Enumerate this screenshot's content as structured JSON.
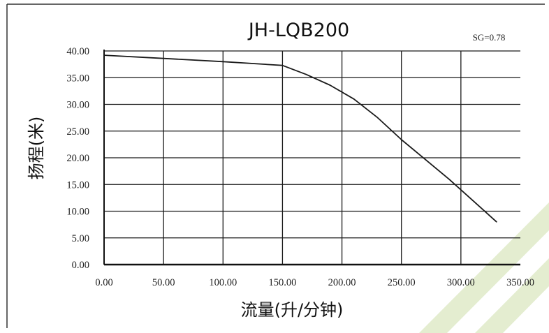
{
  "chart_data": {
    "type": "line",
    "title": "JH-LQB200",
    "annotation": "SG=0.78",
    "xlabel": "流量(升/分钟)",
    "ylabel": "扬程(米)",
    "xlim": [
      0,
      350
    ],
    "ylim": [
      0,
      40
    ],
    "x_ticks": [
      "0.00",
      "50.00",
      "100.00",
      "150.00",
      "200.00",
      "250.00",
      "300.00",
      "350.00"
    ],
    "y_ticks": [
      "0.00",
      "5.00",
      "10.00",
      "15.00",
      "20.00",
      "25.00",
      "30.00",
      "35.00",
      "40.00"
    ],
    "grid": true,
    "series": [
      {
        "x": [
          0,
          50,
          100,
          150,
          170,
          190,
          210,
          230,
          250,
          270,
          290,
          310,
          330
        ],
        "y": [
          39.2,
          38.6,
          38.0,
          37.3,
          35.6,
          33.6,
          31.0,
          27.5,
          23.4,
          19.7,
          16.0,
          12.0,
          8.0
        ]
      }
    ]
  },
  "colors": {
    "line": "#1a1a1a",
    "grid": "#1a1a1a",
    "background": "#ffffff",
    "watermark": "#e3eccd"
  }
}
